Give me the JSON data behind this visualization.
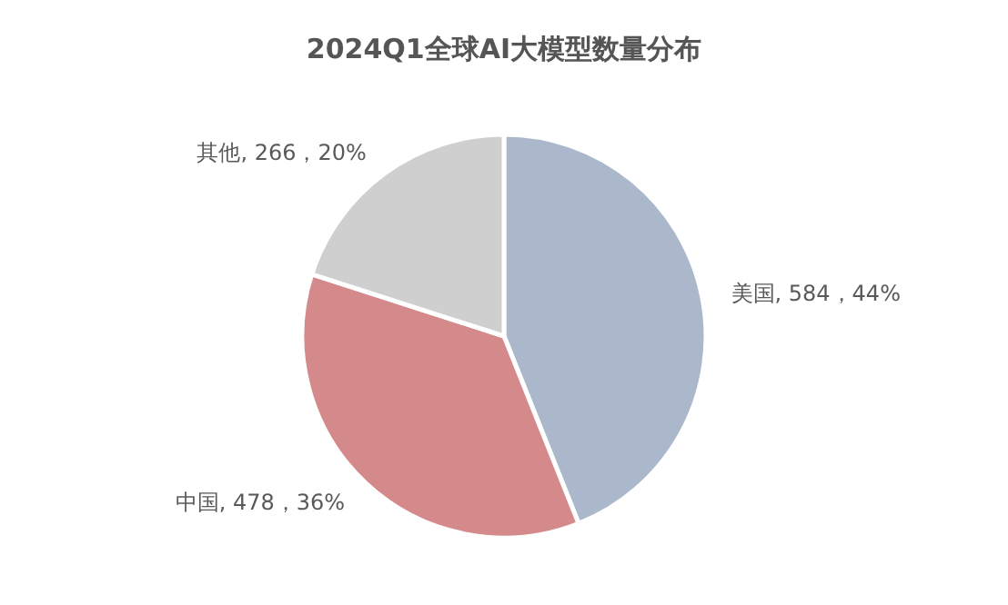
{
  "chart_data": {
    "type": "pie",
    "title": "2024Q1全球AI大模型数量分布",
    "categories": [
      "美国",
      "中国",
      "其他"
    ],
    "values": [
      584,
      478,
      266
    ],
    "value_labels": [
      "584，44%",
      "478，36%",
      "266，20%"
    ],
    "colors": [
      "#abb8cb",
      "#d48a8a",
      "#d0cfd0"
    ]
  }
}
